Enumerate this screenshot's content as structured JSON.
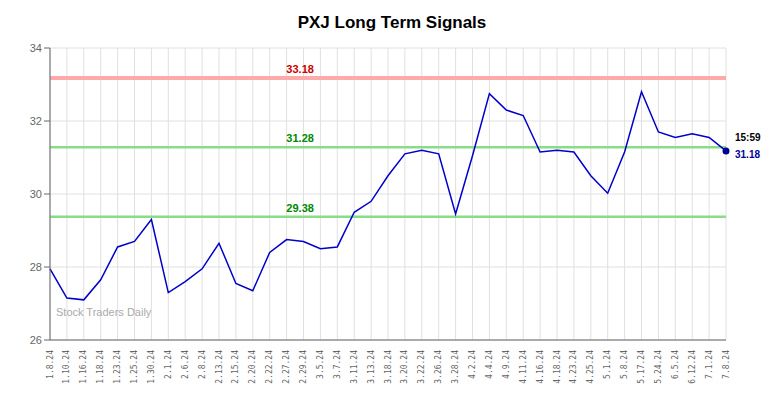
{
  "chart_data": {
    "type": "line",
    "title": "PXJ Long Term Signals",
    "categories": [
      "1.8.24",
      "1.10.24",
      "1.16.24",
      "1.18.24",
      "1.23.24",
      "1.25.24",
      "1.30.24",
      "2.1.24",
      "2.6.24",
      "2.8.24",
      "2.13.24",
      "2.15.24",
      "2.20.24",
      "2.22.24",
      "2.27.24",
      "2.29.24",
      "3.5.24",
      "3.7.24",
      "3.11.24",
      "3.13.24",
      "3.18.24",
      "3.20.24",
      "3.22.24",
      "3.26.24",
      "3.28.24",
      "4.2.24",
      "4.4.24",
      "4.9.24",
      "4.11.24",
      "4.16.24",
      "4.18.24",
      "4.23.24",
      "4.25.24",
      "5.1.24",
      "5.8.24",
      "5.17.24",
      "5.24.24",
      "6.5.24",
      "6.12.24",
      "7.1.24",
      "7.8.24"
    ],
    "values": [
      27.95,
      27.15,
      27.1,
      27.65,
      28.55,
      28.7,
      29.3,
      27.3,
      27.6,
      27.95,
      28.65,
      27.55,
      27.35,
      28.4,
      28.75,
      28.7,
      28.5,
      28.55,
      29.5,
      29.8,
      30.5,
      31.1,
      31.2,
      31.1,
      29.45,
      31.05,
      32.75,
      32.3,
      32.15,
      31.15,
      31.2,
      31.15,
      30.5,
      30.02,
      31.15,
      32.8,
      31.7,
      31.55,
      31.65,
      31.55,
      31.18
    ],
    "color": "#0000cc",
    "ylim": [
      26,
      34
    ],
    "yticks": [
      26,
      28,
      30,
      32,
      34
    ],
    "grid": true,
    "reference_lines": [
      {
        "value": 33.18,
        "color": "#ffaaaa",
        "label_color": "#cc0000"
      },
      {
        "value": 31.28,
        "color": "#88dd88",
        "label_color": "#008800"
      },
      {
        "value": 29.38,
        "color": "#88dd88",
        "label_color": "#008800"
      }
    ],
    "annotations": [
      {
        "text": "15:59",
        "x": "7.8.24",
        "y": 31.18,
        "color": "#000000"
      },
      {
        "text": "31.18",
        "x": "7.8.24",
        "y": 31.18,
        "color": "#000099",
        "marker": "circle"
      },
      {
        "text": "Stock Traders Daily",
        "color": "#aaaaaa"
      }
    ]
  }
}
